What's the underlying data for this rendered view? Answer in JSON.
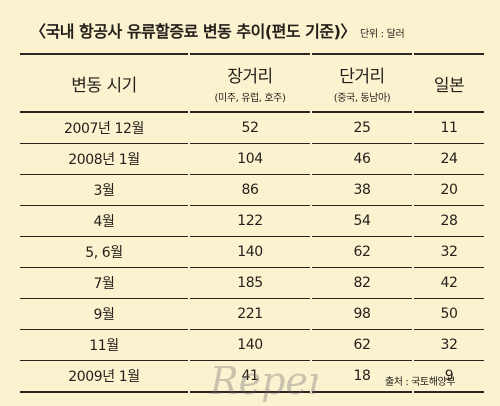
{
  "header": {
    "title": "〈국내 항공사 유류할증료 변동 추이(편도 기준)〉",
    "unit": "단위 : 달러"
  },
  "columns": [
    {
      "main": "변동 시기",
      "sub": ""
    },
    {
      "main": "장거리",
      "sub": "(미주, 유럽, 호주)"
    },
    {
      "main": "단거리",
      "sub": "(중국, 동남아)"
    },
    {
      "main": "일본",
      "sub": ""
    }
  ],
  "rows": [
    [
      "2007년 12월",
      "52",
      "25",
      "11"
    ],
    [
      "2008년  1월",
      "104",
      "46",
      "24"
    ],
    [
      "3월",
      "86",
      "38",
      "20"
    ],
    [
      "4월",
      "122",
      "54",
      "28"
    ],
    [
      "5, 6월",
      "140",
      "62",
      "32"
    ],
    [
      "7월",
      "185",
      "82",
      "42"
    ],
    [
      "9월",
      "221",
      "98",
      "50"
    ],
    [
      "11월",
      "140",
      "62",
      "32"
    ],
    [
      "2009년 1월",
      "41",
      "18",
      "9"
    ]
  ],
  "source": "출처 : 국토해양부",
  "watermark": {
    "text": "Repere",
    "color": "#6f6a73"
  }
}
